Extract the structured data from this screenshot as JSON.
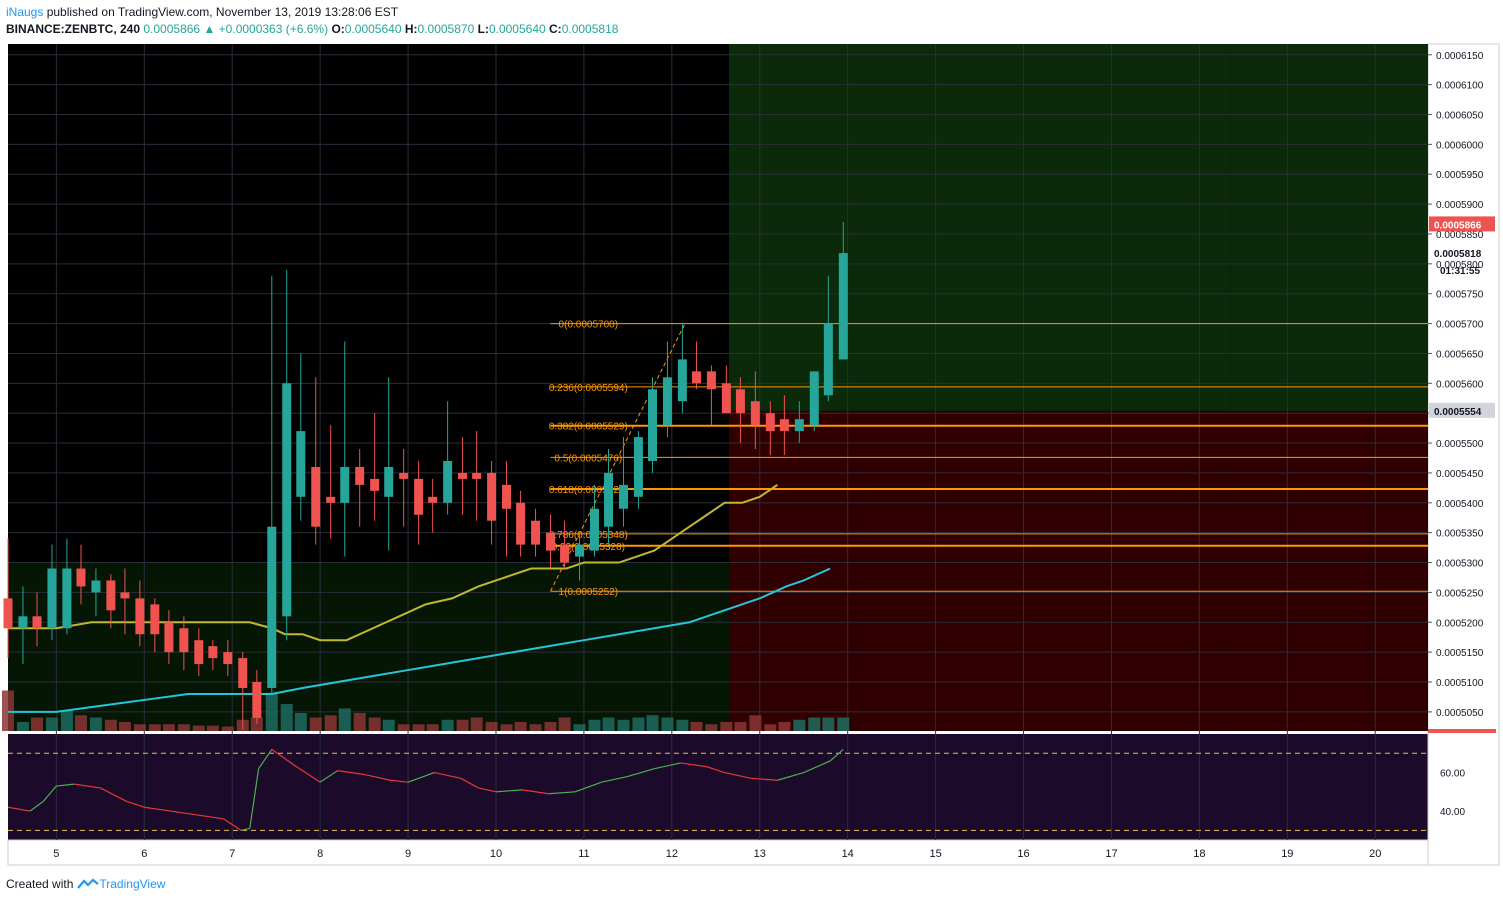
{
  "header": {
    "author": "iNaugs",
    "published_text": "published on TradingView.com, November 13, 2019 13:28:06 EST",
    "symbol": "BINANCE:ZENBTC, 240",
    "last": "0.0005866",
    "change": "+0.0000363 (+6.6%)",
    "o_label": "O:",
    "o": "0.0005640",
    "h_label": "H:",
    "h": "0.0005870",
    "l_label": "L:",
    "l": "0.0005640",
    "c_label": "C:",
    "c": "0.0005818"
  },
  "footer": {
    "created_with": "Created with",
    "brand": "TradingView"
  },
  "colors": {
    "up": "#26a69a",
    "down": "#ef5350",
    "background": "#000000",
    "green_zone": "#0a2a0a",
    "red_zone": "#300000",
    "fib": "#ff9800",
    "ma_yellow": "#c0b830",
    "ma_teal": "#26c6da",
    "rsi_bg": "#1c0a2a"
  },
  "chart_data": {
    "type": "candlestick",
    "x_tick_labels": [
      "5",
      "6",
      "7",
      "8",
      "9",
      "10",
      "11",
      "12",
      "13",
      "14",
      "15",
      "16",
      "17",
      "18",
      "19",
      "20"
    ],
    "y_tick_labels": [
      "0.0006150",
      "0.0006100",
      "0.0006050",
      "0.0006000",
      "0.0005950",
      "0.0005900",
      "0.0005850",
      "0.0005800",
      "0.0005750",
      "0.0005700",
      "0.0005650",
      "0.0005600",
      "0.0005550",
      "0.0005500",
      "0.0005450",
      "0.0005400",
      "0.0005350",
      "0.0005300",
      "0.0005250",
      "0.0005200",
      "0.0005150",
      "0.0005100",
      "0.0005050"
    ],
    "ylim": [
      0.0005018,
      0.0006168
    ],
    "x_domain": [
      4.45,
      20.6
    ],
    "price_labels": {
      "last": "0.0005866",
      "close_mark": "0.0005818",
      "countdown": "01:31:55",
      "zone_mid": "0.0005554"
    },
    "zones": [
      {
        "kind": "profit",
        "x": [
          12.65,
          18.35
        ],
        "y": [
          0.0005554,
          0.0006168
        ]
      },
      {
        "kind": "loss",
        "x": [
          12.65,
          18.35
        ],
        "y": [
          0.0005018,
          0.0005554
        ]
      }
    ],
    "fib_levels": [
      {
        "label": "0(0.0005700)",
        "ratio": 0,
        "price": 0.00057
      },
      {
        "label": "0.236(0.0005594)",
        "ratio": 0.236,
        "price": 0.0005594
      },
      {
        "label": "0.382(0.0005529)",
        "ratio": 0.382,
        "price": 0.0005529
      },
      {
        "label": "0.5(0.0005476)",
        "ratio": 0.5,
        "price": 0.0005476
      },
      {
        "label": "0.618(0.0005423)",
        "ratio": 0.618,
        "price": 0.0005423
      },
      {
        "label": "0.786(0.0005348)",
        "ratio": 0.786,
        "price": 0.0005348
      },
      {
        "label": "0.83(0.0005328)",
        "ratio": 0.83,
        "price": 0.0005328
      },
      {
        "label": "1(0.0005252)",
        "ratio": 1,
        "price": 0.0005252
      }
    ],
    "candles": [
      {
        "t": 4.45,
        "o": 0.000524,
        "h": 0.000534,
        "l": 0.000514,
        "c": 0.000519
      },
      {
        "t": 4.62,
        "o": 0.000519,
        "h": 0.000526,
        "l": 0.000513,
        "c": 0.000521
      },
      {
        "t": 4.78,
        "o": 0.000521,
        "h": 0.000525,
        "l": 0.000516,
        "c": 0.000519
      },
      {
        "t": 4.95,
        "o": 0.000519,
        "h": 0.000533,
        "l": 0.000517,
        "c": 0.000529
      },
      {
        "t": 5.12,
        "o": 0.000519,
        "h": 0.000534,
        "l": 0.000518,
        "c": 0.000529
      },
      {
        "t": 5.28,
        "o": 0.000529,
        "h": 0.000533,
        "l": 0.000523,
        "c": 0.000526
      },
      {
        "t": 5.45,
        "o": 0.000525,
        "h": 0.000529,
        "l": 0.000521,
        "c": 0.000527
      },
      {
        "t": 5.62,
        "o": 0.000527,
        "h": 0.000528,
        "l": 0.000519,
        "c": 0.000522
      },
      {
        "t": 5.78,
        "o": 0.000525,
        "h": 0.000529,
        "l": 0.000518,
        "c": 0.000524
      },
      {
        "t": 5.95,
        "o": 0.000524,
        "h": 0.000527,
        "l": 0.000516,
        "c": 0.000518
      },
      {
        "t": 6.12,
        "o": 0.000523,
        "h": 0.000524,
        "l": 0.000515,
        "c": 0.000518
      },
      {
        "t": 6.28,
        "o": 0.00052,
        "h": 0.000522,
        "l": 0.000513,
        "c": 0.000515
      },
      {
        "t": 6.45,
        "o": 0.000519,
        "h": 0.000521,
        "l": 0.000512,
        "c": 0.000515
      },
      {
        "t": 6.62,
        "o": 0.000517,
        "h": 0.000519,
        "l": 0.000511,
        "c": 0.000513
      },
      {
        "t": 6.78,
        "o": 0.000516,
        "h": 0.000517,
        "l": 0.000512,
        "c": 0.000514
      },
      {
        "t": 6.95,
        "o": 0.000515,
        "h": 0.000517,
        "l": 0.000511,
        "c": 0.000513
      },
      {
        "t": 7.12,
        "o": 0.000514,
        "h": 0.000515,
        "l": 0.000502,
        "c": 0.000509
      },
      {
        "t": 7.28,
        "o": 0.00051,
        "h": 0.000512,
        "l": 0.000503,
        "c": 0.000504
      },
      {
        "t": 7.45,
        "o": 0.000509,
        "h": 0.000578,
        "l": 0.000508,
        "c": 0.000536
      },
      {
        "t": 7.62,
        "o": 0.000521,
        "h": 0.000579,
        "l": 0.000517,
        "c": 0.00056
      },
      {
        "t": 7.78,
        "o": 0.000541,
        "h": 0.000565,
        "l": 0.000537,
        "c": 0.000552
      },
      {
        "t": 7.95,
        "o": 0.000546,
        "h": 0.000561,
        "l": 0.000533,
        "c": 0.000536
      },
      {
        "t": 8.12,
        "o": 0.000541,
        "h": 0.000553,
        "l": 0.000534,
        "c": 0.00054
      },
      {
        "t": 8.28,
        "o": 0.00054,
        "h": 0.000567,
        "l": 0.000531,
        "c": 0.000546
      },
      {
        "t": 8.45,
        "o": 0.000546,
        "h": 0.000549,
        "l": 0.000536,
        "c": 0.000543
      },
      {
        "t": 8.62,
        "o": 0.000544,
        "h": 0.000555,
        "l": 0.000537,
        "c": 0.000542
      },
      {
        "t": 8.78,
        "o": 0.000541,
        "h": 0.000561,
        "l": 0.000532,
        "c": 0.000546
      },
      {
        "t": 8.95,
        "o": 0.000545,
        "h": 0.000549,
        "l": 0.000536,
        "c": 0.000544
      },
      {
        "t": 9.12,
        "o": 0.000544,
        "h": 0.000547,
        "l": 0.000533,
        "c": 0.000538
      },
      {
        "t": 9.28,
        "o": 0.000541,
        "h": 0.000544,
        "l": 0.000535,
        "c": 0.00054
      },
      {
        "t": 9.45,
        "o": 0.00054,
        "h": 0.000557,
        "l": 0.000538,
        "c": 0.000547
      },
      {
        "t": 9.62,
        "o": 0.000545,
        "h": 0.000551,
        "l": 0.000538,
        "c": 0.000544
      },
      {
        "t": 9.78,
        "o": 0.000545,
        "h": 0.000552,
        "l": 0.000537,
        "c": 0.000544
      },
      {
        "t": 9.95,
        "o": 0.000545,
        "h": 0.000547,
        "l": 0.000533,
        "c": 0.000537
      },
      {
        "t": 10.12,
        "o": 0.000543,
        "h": 0.000547,
        "l": 0.000531,
        "c": 0.000539
      },
      {
        "t": 10.28,
        "o": 0.00054,
        "h": 0.000542,
        "l": 0.000531,
        "c": 0.000533
      },
      {
        "t": 10.45,
        "o": 0.000537,
        "h": 0.000539,
        "l": 0.000531,
        "c": 0.000533
      },
      {
        "t": 10.62,
        "o": 0.000535,
        "h": 0.000538,
        "l": 0.000529,
        "c": 0.000532
      },
      {
        "t": 10.78,
        "o": 0.000533,
        "h": 0.000537,
        "l": 0.000529,
        "c": 0.00053
      },
      {
        "t": 10.95,
        "o": 0.000531,
        "h": 0.000535,
        "l": 0.000527,
        "c": 0.000533
      },
      {
        "t": 11.12,
        "o": 0.000532,
        "h": 0.000543,
        "l": 0.000531,
        "c": 0.000539
      },
      {
        "t": 11.28,
        "o": 0.000536,
        "h": 0.000549,
        "l": 0.000533,
        "c": 0.000545
      },
      {
        "t": 11.45,
        "o": 0.000539,
        "h": 0.000551,
        "l": 0.000536,
        "c": 0.000543
      },
      {
        "t": 11.62,
        "o": 0.000541,
        "h": 0.000552,
        "l": 0.000539,
        "c": 0.000551
      },
      {
        "t": 11.78,
        "o": 0.000547,
        "h": 0.000561,
        "l": 0.000545,
        "c": 0.000559
      },
      {
        "t": 11.95,
        "o": 0.000553,
        "h": 0.000567,
        "l": 0.000551,
        "c": 0.000561
      },
      {
        "t": 12.12,
        "o": 0.000557,
        "h": 0.00057,
        "l": 0.000555,
        "c": 0.000564
      },
      {
        "t": 12.28,
        "o": 0.000562,
        "h": 0.000567,
        "l": 0.000559,
        "c": 0.00056
      },
      {
        "t": 12.45,
        "o": 0.000562,
        "h": 0.000563,
        "l": 0.000553,
        "c": 0.000559
      },
      {
        "t": 12.62,
        "o": 0.00056,
        "h": 0.000563,
        "l": 0.000556,
        "c": 0.000555
      },
      {
        "t": 12.78,
        "o": 0.000559,
        "h": 0.000561,
        "l": 0.00055,
        "c": 0.000555
      },
      {
        "t": 12.95,
        "o": 0.000557,
        "h": 0.000562,
        "l": 0.000549,
        "c": 0.000553
      },
      {
        "t": 13.12,
        "o": 0.000555,
        "h": 0.000557,
        "l": 0.000548,
        "c": 0.000552
      },
      {
        "t": 13.28,
        "o": 0.000554,
        "h": 0.000558,
        "l": 0.000548,
        "c": 0.000552
      },
      {
        "t": 13.45,
        "o": 0.000552,
        "h": 0.000557,
        "l": 0.00055,
        "c": 0.000554
      },
      {
        "t": 13.62,
        "o": 0.000553,
        "h": 0.000562,
        "l": 0.000552,
        "c": 0.000562
      },
      {
        "t": 13.78,
        "o": 0.000558,
        "h": 0.000578,
        "l": 0.000557,
        "c": 0.00057
      },
      {
        "t": 13.95,
        "o": 0.000564,
        "h": 0.000587,
        "l": 0.000564,
        "c": 0.0005818
      }
    ],
    "volume": [
      0.9,
      0.2,
      0.3,
      0.3,
      0.45,
      0.35,
      0.3,
      0.25,
      0.2,
      0.15,
      0.15,
      0.15,
      0.15,
      0.12,
      0.12,
      0.1,
      0.25,
      0.3,
      0.85,
      0.6,
      0.4,
      0.3,
      0.35,
      0.5,
      0.4,
      0.3,
      0.25,
      0.15,
      0.15,
      0.15,
      0.25,
      0.25,
      0.3,
      0.2,
      0.15,
      0.2,
      0.15,
      0.2,
      0.3,
      0.15,
      0.25,
      0.3,
      0.25,
      0.3,
      0.35,
      0.3,
      0.25,
      0.2,
      0.15,
      0.2,
      0.2,
      0.35,
      0.15,
      0.2,
      0.25,
      0.3,
      0.3,
      0.3
    ],
    "ma_yellow": [
      0.000519,
      0.000519,
      0.00052,
      0.00052,
      0.00052,
      0.00052,
      0.00052,
      0.00052,
      0.000519,
      0.000518,
      0.000518,
      0.000517,
      0.000517,
      0.000519,
      0.000521,
      0.000523,
      0.000524,
      0.000526,
      0.000527,
      0.000528,
      0.000529,
      0.000529,
      0.000529,
      0.00053,
      0.00053,
      0.00053,
      0.000531,
      0.000532,
      0.000534,
      0.000536,
      0.000538,
      0.00054,
      0.00054,
      0.000541,
      0.000543
    ],
    "ma_yellow_x": [
      4.45,
      5.0,
      5.4,
      5.8,
      6.2,
      6.6,
      7.0,
      7.2,
      7.45,
      7.6,
      7.8,
      8.0,
      8.3,
      8.6,
      8.9,
      9.2,
      9.5,
      9.8,
      10.0,
      10.2,
      10.4,
      10.6,
      10.8,
      11.0,
      11.2,
      11.4,
      11.6,
      11.8,
      12.0,
      12.2,
      12.4,
      12.6,
      12.8,
      13.0,
      13.2
    ],
    "ma_teal": [
      0.000505,
      0.000505,
      0.000506,
      0.000507,
      0.000508,
      0.000508,
      0.000508,
      0.000509,
      0.00051,
      0.000511,
      0.000512,
      0.000513,
      0.000514,
      0.000515,
      0.000516,
      0.000517,
      0.000518,
      0.000519,
      0.00052,
      0.000522,
      0.000524,
      0.000526,
      0.000527,
      0.000529
    ],
    "ma_teal_x": [
      4.45,
      5.0,
      5.5,
      6.0,
      6.5,
      7.0,
      7.45,
      7.8,
      8.2,
      8.6,
      9.0,
      9.4,
      9.8,
      10.2,
      10.6,
      11.0,
      11.4,
      11.8,
      12.2,
      12.6,
      13.0,
      13.3,
      13.5,
      13.8
    ],
    "rsi": {
      "y_tick_labels": [
        "60.00",
        "40.00"
      ],
      "ylim": [
        25,
        80
      ],
      "overbought": 70,
      "oversold": 30,
      "x": [
        4.45,
        4.7,
        4.85,
        5.0,
        5.2,
        5.5,
        5.8,
        6.0,
        6.3,
        6.6,
        6.9,
        7.1,
        7.2,
        7.3,
        7.45,
        7.7,
        8.0,
        8.2,
        8.5,
        8.8,
        9.0,
        9.3,
        9.6,
        9.8,
        10.0,
        10.3,
        10.6,
        10.9,
        11.2,
        11.5,
        11.8,
        12.1,
        12.4,
        12.6,
        12.9,
        13.2,
        13.5,
        13.8,
        13.95
      ],
      "values": [
        42,
        40,
        45,
        53,
        54,
        52,
        45,
        42,
        40,
        38,
        36,
        30,
        31,
        62,
        72,
        64,
        55,
        61,
        59,
        56,
        55,
        60,
        57,
        52,
        50,
        51,
        49,
        50,
        55,
        58,
        62,
        65,
        63,
        60,
        57,
        56,
        60,
        66,
        72
      ]
    },
    "rsi_band_lines": [
      70,
      30
    ]
  }
}
